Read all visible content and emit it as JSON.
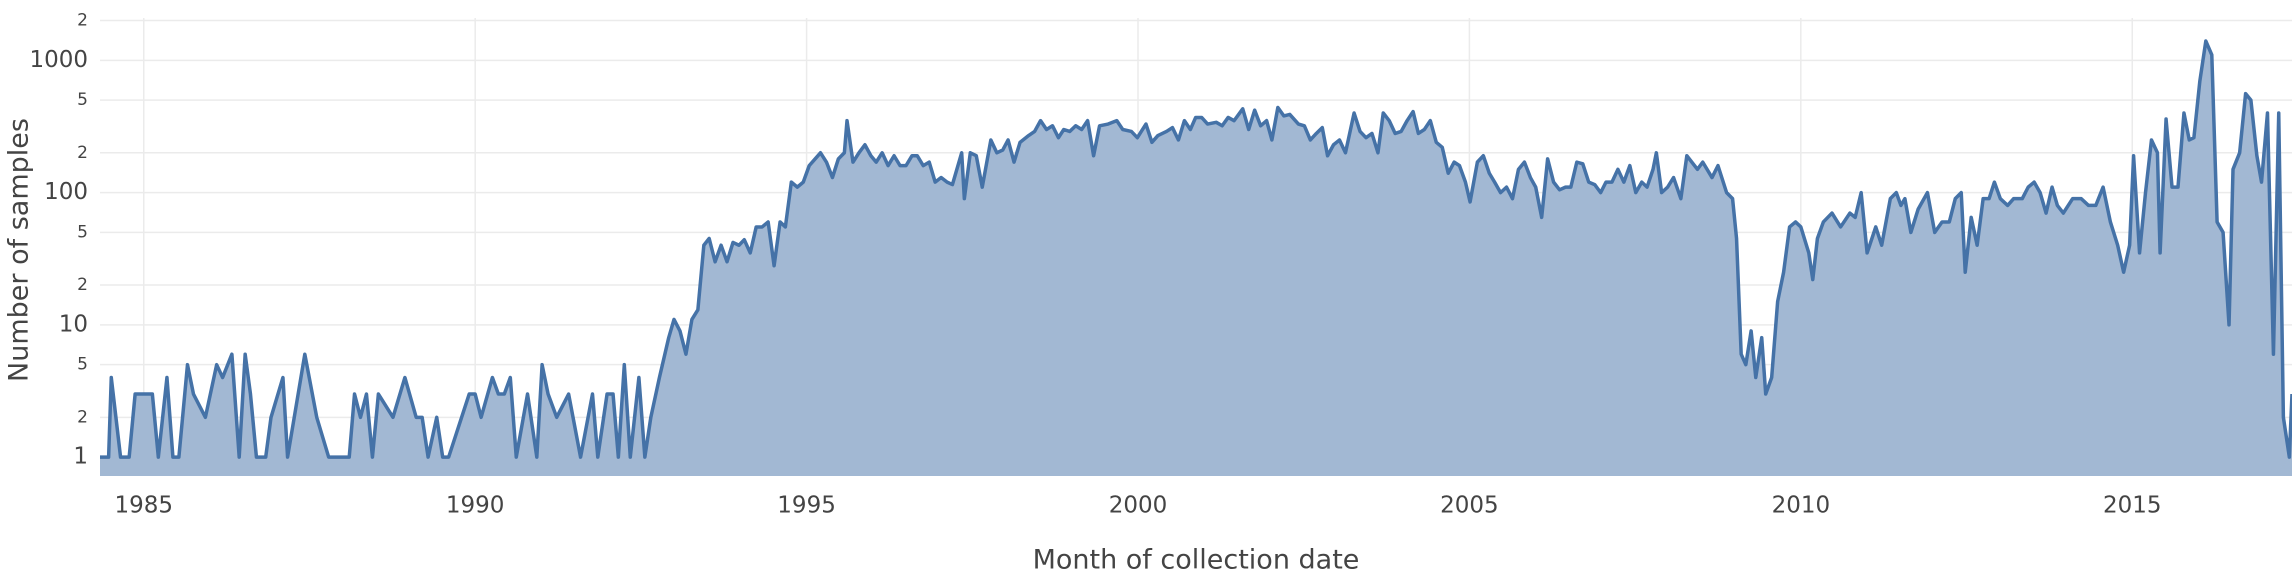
{
  "chart_data": {
    "type": "area",
    "xlabel": "Month of collection date",
    "ylabel": "Number of samples",
    "color": "#4572a7",
    "fill_color": "#a2b8d3",
    "log_y": true,
    "grid": true,
    "xlim": [
      1984.34,
      2017.41
    ],
    "xticks": [
      1985,
      1990,
      1995,
      2000,
      2005,
      2010,
      2015
    ],
    "ylim": [
      0.72,
      2090
    ],
    "yticks": [
      1,
      2,
      5,
      10,
      {
        "value": 20,
        "label": "2"
      },
      {
        "value": 50,
        "label": "5"
      },
      100,
      {
        "value": 200,
        "label": "2"
      },
      {
        "value": 500,
        "label": "5"
      },
      1000,
      {
        "value": 2000,
        "label": "2"
      }
    ],
    "x": [
      1984.34,
      1984.47,
      1984.51,
      1984.65,
      1984.78,
      1984.87,
      1985.13,
      1985.22,
      1985.35,
      1985.44,
      1985.53,
      1985.66,
      1985.75,
      1985.93,
      1986.1,
      1986.19,
      1986.33,
      1986.44,
      1986.53,
      1986.61,
      1986.7,
      1986.84,
      1986.92,
      1987.1,
      1987.17,
      1987.43,
      1987.61,
      1987.79,
      1988.1,
      1988.18,
      1988.27,
      1988.36,
      1988.45,
      1988.54,
      1988.76,
      1988.94,
      1989.11,
      1989.2,
      1989.29,
      1989.42,
      1989.51,
      1989.6,
      1989.91,
      1990.0,
      1990.09,
      1990.26,
      1990.35,
      1990.44,
      1990.53,
      1990.62,
      1990.79,
      1990.93,
      1991.01,
      1991.1,
      1991.23,
      1991.41,
      1991.59,
      1991.77,
      1991.85,
      1991.99,
      1992.08,
      1992.16,
      1992.25,
      1992.34,
      1992.47,
      1992.56,
      1992.65,
      1992.78,
      1992.92,
      1993.0,
      1993.09,
      1993.18,
      1993.27,
      1993.36,
      1993.45,
      1993.53,
      1993.62,
      1993.71,
      1993.8,
      1993.89,
      1993.98,
      1994.06,
      1994.15,
      1994.24,
      1994.33,
      1994.42,
      1994.51,
      1994.6,
      1994.68,
      1994.77,
      1994.86,
      1994.95,
      1995.04,
      1995.13,
      1995.21,
      1995.3,
      1995.39,
      1995.48,
      1995.57,
      1995.61,
      1995.7,
      1995.79,
      1995.88,
      1995.97,
      1996.05,
      1996.14,
      1996.23,
      1996.32,
      1996.41,
      1996.5,
      1996.59,
      1996.67,
      1996.76,
      1996.85,
      1996.94,
      1997.03,
      1997.12,
      1997.2,
      1997.34,
      1997.38,
      1997.47,
      1997.56,
      1997.65,
      1997.78,
      1997.87,
      1997.96,
      1998.04,
      1998.13,
      1998.22,
      1998.35,
      1998.44,
      1998.53,
      1998.62,
      1998.71,
      1998.8,
      1998.88,
      1998.97,
      1999.06,
      1999.15,
      1999.24,
      1999.33,
      1999.42,
      1999.55,
      1999.68,
      1999.77,
      1999.9,
      1999.99,
      2000.12,
      2000.21,
      2000.3,
      2000.43,
      2000.52,
      2000.61,
      2000.7,
      2000.79,
      2000.87,
      2000.96,
      2001.05,
      2001.18,
      2001.27,
      2001.36,
      2001.45,
      2001.58,
      2001.67,
      2001.76,
      2001.85,
      2001.94,
      2002.02,
      2002.11,
      2002.2,
      2002.29,
      2002.42,
      2002.51,
      2002.6,
      2002.69,
      2002.78,
      2002.86,
      2002.95,
      2003.04,
      2003.13,
      2003.26,
      2003.35,
      2003.44,
      2003.53,
      2003.62,
      2003.7,
      2003.79,
      2003.88,
      2003.97,
      2004.06,
      2004.15,
      2004.23,
      2004.32,
      2004.41,
      2004.5,
      2004.59,
      2004.68,
      2004.77,
      2004.85,
      2004.94,
      2005.01,
      2005.12,
      2005.21,
      2005.3,
      2005.38,
      2005.47,
      2005.56,
      2005.65,
      2005.74,
      2005.83,
      2005.92,
      2006.0,
      2006.09,
      2006.18,
      2006.27,
      2006.36,
      2006.45,
      2006.53,
      2006.62,
      2006.71,
      2006.8,
      2006.89,
      2006.98,
      2007.06,
      2007.15,
      2007.24,
      2007.33,
      2007.42,
      2007.51,
      2007.6,
      2007.68,
      2007.77,
      2007.82,
      2007.9,
      2007.99,
      2008.08,
      2008.19,
      2008.28,
      2008.44,
      2008.52,
      2008.66,
      2008.75,
      2008.88,
      2008.97,
      2009.03,
      2009.1,
      2009.17,
      2009.25,
      2009.32,
      2009.41,
      2009.47,
      2009.56,
      2009.65,
      2009.74,
      2009.83,
      2009.92,
      2010.0,
      2010.12,
      2010.18,
      2010.25,
      2010.34,
      2010.47,
      2010.6,
      2010.74,
      2010.82,
      2010.91,
      2011.0,
      2011.13,
      2011.22,
      2011.35,
      2011.44,
      2011.51,
      2011.57,
      2011.66,
      2011.77,
      2011.91,
      2012.02,
      2012.13,
      2012.24,
      2012.33,
      2012.42,
      2012.48,
      2012.57,
      2012.66,
      2012.75,
      2012.84,
      2012.92,
      2013.01,
      2013.12,
      2013.21,
      2013.34,
      2013.43,
      2013.52,
      2013.61,
      2013.7,
      2013.79,
      2013.87,
      2013.96,
      2014.1,
      2014.23,
      2014.34,
      2014.45,
      2014.56,
      2014.67,
      2014.78,
      2014.87,
      2014.96,
      2015.02,
      2015.11,
      2015.2,
      2015.29,
      2015.38,
      2015.42,
      2015.51,
      2015.6,
      2015.69,
      2015.78,
      2015.86,
      2015.93,
      2016.02,
      2016.11,
      2016.2,
      2016.28,
      2016.37,
      2016.46,
      2016.52,
      2016.62,
      2016.71,
      2016.79,
      2016.88,
      2016.95,
      2017.04,
      2017.13,
      2017.21,
      2017.28,
      2017.37,
      2017.41
    ],
    "values": [
      1,
      1,
      4,
      1,
      1,
      3,
      3,
      1,
      4,
      1,
      1,
      5,
      3,
      2,
      5,
      4,
      6,
      1,
      6,
      3,
      1,
      1,
      2,
      4,
      1,
      6,
      2,
      1,
      1,
      3,
      2,
      3,
      1,
      3,
      2,
      4,
      2,
      2,
      1,
      2,
      1,
      1,
      3,
      3,
      2,
      4,
      3,
      3,
      4,
      1,
      3,
      1,
      5,
      3,
      2,
      3,
      1,
      3,
      1,
      3,
      3,
      1,
      5,
      1,
      4,
      1,
      2,
      4,
      8,
      11,
      9,
      6,
      11,
      13,
      40,
      45,
      30,
      40,
      30,
      42,
      40,
      44,
      35,
      55,
      55,
      60,
      28,
      60,
      55,
      120,
      110,
      120,
      160,
      180,
      200,
      170,
      130,
      180,
      200,
      350,
      170,
      200,
      230,
      190,
      170,
      200,
      160,
      190,
      160,
      160,
      190,
      190,
      160,
      170,
      120,
      130,
      120,
      115,
      200,
      90,
      200,
      190,
      110,
      250,
      200,
      210,
      250,
      170,
      240,
      270,
      290,
      350,
      300,
      320,
      260,
      300,
      290,
      320,
      300,
      350,
      190,
      320,
      330,
      350,
      300,
      290,
      260,
      330,
      240,
      270,
      290,
      310,
      250,
      350,
      300,
      370,
      370,
      330,
      340,
      320,
      370,
      350,
      430,
      300,
      420,
      320,
      350,
      250,
      440,
      380,
      390,
      330,
      320,
      250,
      280,
      310,
      190,
      230,
      250,
      200,
      400,
      290,
      260,
      280,
      200,
      400,
      350,
      280,
      290,
      350,
      410,
      280,
      300,
      350,
      240,
      220,
      140,
      170,
      160,
      120,
      85,
      170,
      190,
      140,
      120,
      100,
      110,
      90,
      150,
      170,
      130,
      110,
      65,
      180,
      120,
      105,
      110,
      110,
      170,
      165,
      120,
      115,
      100,
      120,
      120,
      150,
      120,
      160,
      100,
      120,
      110,
      150,
      200,
      100,
      110,
      130,
      90,
      190,
      150,
      170,
      130,
      160,
      100,
      90,
      45,
      6,
      5,
      9,
      4,
      8,
      3,
      4,
      15,
      25,
      55,
      60,
      55,
      35,
      22,
      45,
      60,
      70,
      55,
      70,
      65,
      100,
      35,
      55,
      40,
      90,
      100,
      80,
      90,
      50,
      75,
      100,
      50,
      60,
      60,
      90,
      100,
      25,
      65,
      40,
      90,
      90,
      120,
      90,
      80,
      90,
      90,
      110,
      120,
      100,
      70,
      110,
      80,
      70,
      90,
      90,
      80,
      80,
      110,
      60,
      40,
      25,
      40,
      190,
      35,
      100,
      250,
      200,
      35,
      360,
      110,
      110,
      400,
      250,
      260,
      700,
      1400,
      1100,
      60,
      50,
      10,
      150,
      200,
      560,
      500,
      190,
      120,
      400,
      6,
      400,
      2,
      1,
      3
    ]
  }
}
